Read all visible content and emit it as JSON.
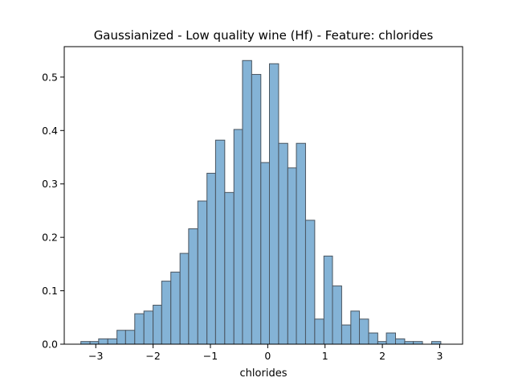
{
  "chart_data": {
    "type": "bar",
    "title": "Gaussianized - Low quality wine (Hf) - Feature: chlorides",
    "xlabel": "chlorides",
    "ylabel": "",
    "xlim": [
      -3.55,
      3.4
    ],
    "ylim": [
      0,
      0.557
    ],
    "xticks": [
      -3,
      -2,
      -1,
      0,
      1,
      2,
      3
    ],
    "xtick_labels": [
      "−3",
      "−2",
      "−1",
      "0",
      "1",
      "2",
      "3"
    ],
    "yticks": [
      0.0,
      0.1,
      0.2,
      0.3,
      0.4,
      0.5
    ],
    "ytick_labels": [
      "0.0",
      "0.1",
      "0.2",
      "0.3",
      "0.4",
      "0.5"
    ],
    "grid": false,
    "bar_color": "#84b3d6",
    "edge_color": "#4a5560",
    "bins": [
      {
        "x0": -3.26,
        "x1": -3.1,
        "value": 0.005
      },
      {
        "x0": -3.1,
        "x1": -2.95,
        "value": 0.005
      },
      {
        "x0": -2.95,
        "x1": -2.79,
        "value": 0.01
      },
      {
        "x0": -2.79,
        "x1": -2.63,
        "value": 0.01
      },
      {
        "x0": -2.63,
        "x1": -2.48,
        "value": 0.026
      },
      {
        "x0": -2.48,
        "x1": -2.32,
        "value": 0.026
      },
      {
        "x0": -2.32,
        "x1": -2.16,
        "value": 0.057
      },
      {
        "x0": -2.16,
        "x1": -2.0,
        "value": 0.062
      },
      {
        "x0": -2.0,
        "x1": -1.85,
        "value": 0.073
      },
      {
        "x0": -1.85,
        "x1": -1.69,
        "value": 0.118
      },
      {
        "x0": -1.69,
        "x1": -1.53,
        "value": 0.135
      },
      {
        "x0": -1.53,
        "x1": -1.38,
        "value": 0.17
      },
      {
        "x0": -1.38,
        "x1": -1.22,
        "value": 0.216
      },
      {
        "x0": -1.22,
        "x1": -1.06,
        "value": 0.268
      },
      {
        "x0": -1.06,
        "x1": -0.91,
        "value": 0.32
      },
      {
        "x0": -0.91,
        "x1": -0.75,
        "value": 0.382
      },
      {
        "x0": -0.75,
        "x1": -0.59,
        "value": 0.284
      },
      {
        "x0": -0.59,
        "x1": -0.44,
        "value": 0.402
      },
      {
        "x0": -0.44,
        "x1": -0.28,
        "value": 0.531
      },
      {
        "x0": -0.28,
        "x1": -0.12,
        "value": 0.505
      },
      {
        "x0": -0.12,
        "x1": 0.03,
        "value": 0.34
      },
      {
        "x0": 0.03,
        "x1": 0.19,
        "value": 0.525
      },
      {
        "x0": 0.19,
        "x1": 0.35,
        "value": 0.376
      },
      {
        "x0": 0.35,
        "x1": 0.5,
        "value": 0.33
      },
      {
        "x0": 0.5,
        "x1": 0.66,
        "value": 0.376
      },
      {
        "x0": 0.66,
        "x1": 0.82,
        "value": 0.232
      },
      {
        "x0": 0.82,
        "x1": 0.98,
        "value": 0.047
      },
      {
        "x0": 0.98,
        "x1": 1.13,
        "value": 0.165
      },
      {
        "x0": 1.13,
        "x1": 1.29,
        "value": 0.109
      },
      {
        "x0": 1.29,
        "x1": 1.45,
        "value": 0.036
      },
      {
        "x0": 1.45,
        "x1": 1.6,
        "value": 0.062
      },
      {
        "x0": 1.6,
        "x1": 1.76,
        "value": 0.047
      },
      {
        "x0": 1.76,
        "x1": 1.92,
        "value": 0.021
      },
      {
        "x0": 1.92,
        "x1": 2.07,
        "value": 0.005
      },
      {
        "x0": 2.07,
        "x1": 2.23,
        "value": 0.021
      },
      {
        "x0": 2.23,
        "x1": 2.39,
        "value": 0.01
      },
      {
        "x0": 2.39,
        "x1": 2.54,
        "value": 0.005
      },
      {
        "x0": 2.54,
        "x1": 2.7,
        "value": 0.005
      },
      {
        "x0": 2.7,
        "x1": 2.86,
        "value": 0.0
      },
      {
        "x0": 2.86,
        "x1": 3.02,
        "value": 0.005
      }
    ]
  }
}
